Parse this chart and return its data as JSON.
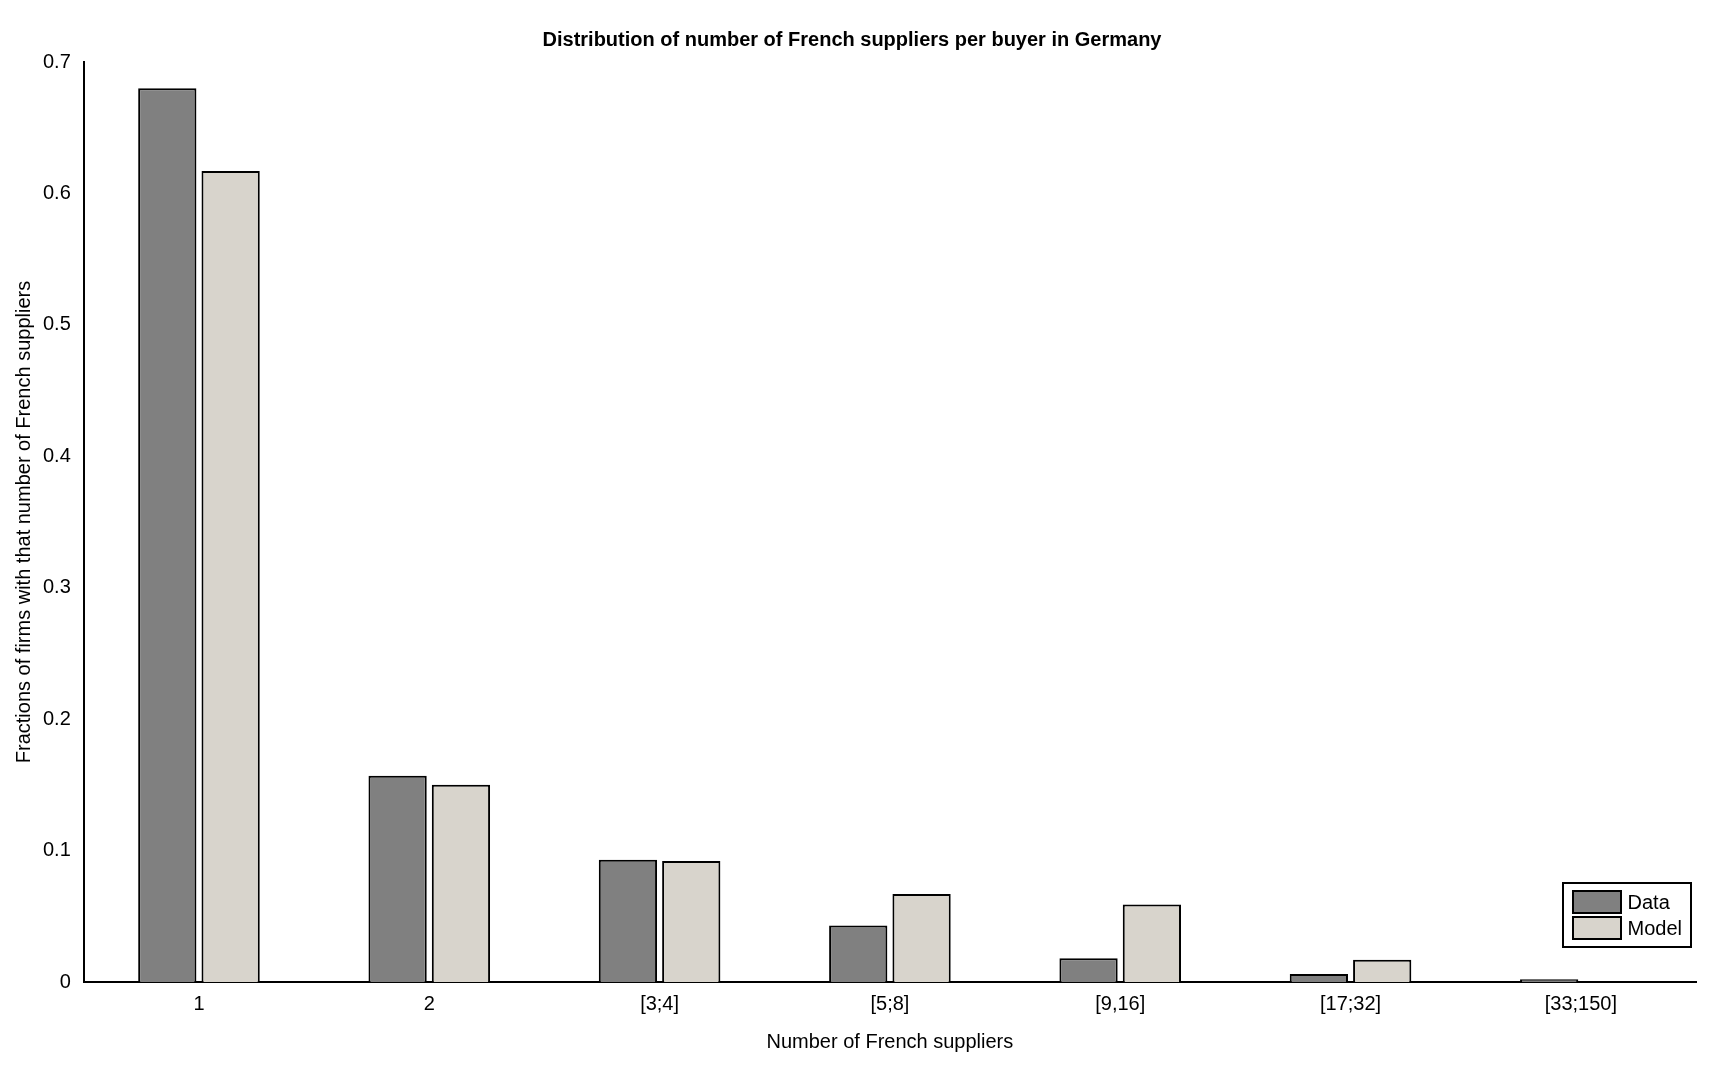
{
  "chart_data": {
    "type": "bar",
    "title": "Distribution of number of French suppliers per buyer in Germany",
    "xlabel": "Number of French suppliers",
    "ylabel": "Fractions of firms with that number of French suppliers",
    "categories": [
      "1",
      "2",
      "[3;4]",
      "[5;8]",
      "[9,16]",
      "[17;32]",
      "[33;150]"
    ],
    "series": [
      {
        "name": "Data",
        "color": "#808080",
        "values": [
          0.68,
          0.157,
          0.093,
          0.043,
          0.018,
          0.006,
          0.002
        ]
      },
      {
        "name": "Model",
        "color": "#d8d4cc",
        "values": [
          0.617,
          0.15,
          0.092,
          0.067,
          0.059,
          0.017,
          null
        ]
      }
    ],
    "ylim": [
      0,
      0.7
    ],
    "yticks": [
      0,
      0.1,
      0.2,
      0.3,
      0.4,
      0.5,
      0.6,
      0.7
    ],
    "grid": false,
    "legend": "bottom right"
  }
}
